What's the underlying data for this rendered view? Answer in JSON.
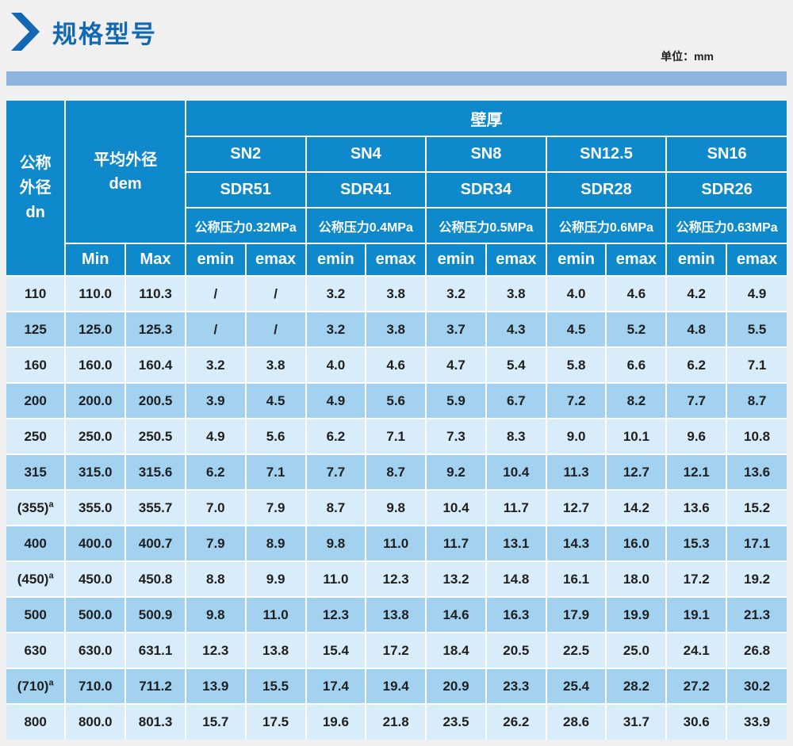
{
  "page": {
    "title": "规格型号",
    "unit_label": "单位：mm"
  },
  "colors": {
    "header_blue": "#0e89cb",
    "row_light": "#d9ecf9",
    "row_dark": "#a2d2f0",
    "title_blue": "#1268b3",
    "bar_blue": "#8cb6de",
    "page_bg": "#f0f0f1"
  },
  "table": {
    "wall_header": "壁厚",
    "dn_header": {
      "line1": "公称",
      "line2": "外径",
      "line3": "dn"
    },
    "dem_header": {
      "line1": "平均外径",
      "line2": "dem"
    },
    "min_label": "Min",
    "max_label": "Max",
    "emin_label": "emin",
    "emax_label": "emax",
    "groups": [
      {
        "sn": "SN2",
        "sdr": "SDR51",
        "pressure": "公称压力0.32MPa"
      },
      {
        "sn": "SN4",
        "sdr": "SDR41",
        "pressure": "公称压力0.4MPa"
      },
      {
        "sn": "SN8",
        "sdr": "SDR34",
        "pressure": "公称压力0.5MPa"
      },
      {
        "sn": "SN12.5",
        "sdr": "SDR28",
        "pressure": "公称压力0.6MPa"
      },
      {
        "sn": "SN16",
        "sdr": "SDR26",
        "pressure": "公称压力0.63MPa"
      }
    ],
    "rows": [
      {
        "dn": "110",
        "dn_sup": "",
        "min": "110.0",
        "max": "110.3",
        "values": [
          "/",
          "/",
          "3.2",
          "3.8",
          "3.2",
          "3.8",
          "4.0",
          "4.6",
          "4.2",
          "4.9"
        ]
      },
      {
        "dn": "125",
        "dn_sup": "",
        "min": "125.0",
        "max": "125.3",
        "values": [
          "/",
          "/",
          "3.2",
          "3.8",
          "3.7",
          "4.3",
          "4.5",
          "5.2",
          "4.8",
          "5.5"
        ]
      },
      {
        "dn": "160",
        "dn_sup": "",
        "min": "160.0",
        "max": "160.4",
        "values": [
          "3.2",
          "3.8",
          "4.0",
          "4.6",
          "4.7",
          "5.4",
          "5.8",
          "6.6",
          "6.2",
          "7.1"
        ]
      },
      {
        "dn": "200",
        "dn_sup": "",
        "min": "200.0",
        "max": "200.5",
        "values": [
          "3.9",
          "4.5",
          "4.9",
          "5.6",
          "5.9",
          "6.7",
          "7.2",
          "8.2",
          "7.7",
          "8.7"
        ]
      },
      {
        "dn": "250",
        "dn_sup": "",
        "min": "250.0",
        "max": "250.5",
        "values": [
          "4.9",
          "5.6",
          "6.2",
          "7.1",
          "7.3",
          "8.3",
          "9.0",
          "10.1",
          "9.6",
          "10.8"
        ]
      },
      {
        "dn": "315",
        "dn_sup": "",
        "min": "315.0",
        "max": "315.6",
        "values": [
          "6.2",
          "7.1",
          "7.7",
          "8.7",
          "9.2",
          "10.4",
          "11.3",
          "12.7",
          "12.1",
          "13.6"
        ]
      },
      {
        "dn": "(355)",
        "dn_sup": "a",
        "min": "355.0",
        "max": "355.7",
        "values": [
          "7.0",
          "7.9",
          "8.7",
          "9.8",
          "10.4",
          "11.7",
          "12.7",
          "14.2",
          "13.6",
          "15.2"
        ]
      },
      {
        "dn": "400",
        "dn_sup": "",
        "min": "400.0",
        "max": "400.7",
        "values": [
          "7.9",
          "8.9",
          "9.8",
          "11.0",
          "11.7",
          "13.1",
          "14.3",
          "16.0",
          "15.3",
          "17.1"
        ]
      },
      {
        "dn": "(450)",
        "dn_sup": "a",
        "min": "450.0",
        "max": "450.8",
        "values": [
          "8.8",
          "9.9",
          "11.0",
          "12.3",
          "13.2",
          "14.8",
          "16.1",
          "18.0",
          "17.2",
          "19.2"
        ]
      },
      {
        "dn": "500",
        "dn_sup": "",
        "min": "500.0",
        "max": "500.9",
        "values": [
          "9.8",
          "11.0",
          "12.3",
          "13.8",
          "14.6",
          "16.3",
          "17.9",
          "19.9",
          "19.1",
          "21.3"
        ]
      },
      {
        "dn": "630",
        "dn_sup": "",
        "min": "630.0",
        "max": "631.1",
        "values": [
          "12.3",
          "13.8",
          "15.4",
          "17.2",
          "18.4",
          "20.5",
          "22.5",
          "25.0",
          "24.1",
          "26.8"
        ]
      },
      {
        "dn": "(710)",
        "dn_sup": "a",
        "min": "710.0",
        "max": "711.2",
        "values": [
          "13.9",
          "15.5",
          "17.4",
          "19.4",
          "20.9",
          "23.3",
          "25.4",
          "28.2",
          "27.2",
          "30.2"
        ]
      },
      {
        "dn": "800",
        "dn_sup": "",
        "min": "800.0",
        "max": "801.3",
        "values": [
          "15.7",
          "17.5",
          "19.6",
          "21.8",
          "23.5",
          "26.2",
          "28.6",
          "31.7",
          "30.6",
          "33.9"
        ]
      }
    ]
  }
}
